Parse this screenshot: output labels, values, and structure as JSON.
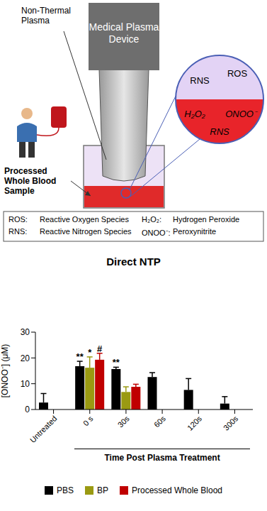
{
  "diagram": {
    "device": "Medical Plasma Device",
    "plasma_label": "Non-Thermal Plasma",
    "sample_label": "Processed Whole Blood Sample",
    "zoom": {
      "gas": [
        "RNS",
        "ROS"
      ],
      "liquid": [
        "H₂O₂",
        "ONOO⁻",
        "RNS"
      ]
    },
    "key": [
      {
        "term": "ROS:",
        "meaning": "Reactive Oxygen Species"
      },
      {
        "term": "H₂O₂:",
        "meaning": "Hydrogen Peroxide"
      },
      {
        "term": "RNS:",
        "meaning": "Reactive Nitrogen Species"
      },
      {
        "term": "ONOO⁻:",
        "meaning": "Peroxynitrite"
      }
    ]
  },
  "chart_data": {
    "type": "bar",
    "title": "Direct NTP",
    "ylabel": "[ONOO⁻] (μM)",
    "xlabel": "Time Post Plasma Treatment",
    "categories": [
      "Untreated",
      "0 s",
      "30s",
      "60s",
      "120s",
      "300s"
    ],
    "series": [
      {
        "name": "PBS",
        "color": "#000000",
        "values": [
          2.7,
          16.8,
          15.7,
          12.6,
          7.6,
          2.3
        ],
        "errors": [
          3.5,
          1.9,
          0.7,
          1.7,
          4.4,
          2.7
        ],
        "annotations": [
          null,
          "**",
          "**",
          null,
          null,
          null
        ]
      },
      {
        "name": "BP",
        "color": "#9a9a12",
        "values": [
          null,
          16.2,
          6.8,
          null,
          null,
          null
        ],
        "errors": [
          null,
          4.2,
          2.0,
          null,
          null,
          null
        ],
        "annotations": [
          null,
          "*",
          null,
          null,
          null,
          null
        ]
      },
      {
        "name": "Processed Whole Blood",
        "color": "#c00000",
        "values": [
          null,
          19.3,
          8.8,
          null,
          null,
          null
        ],
        "errors": [
          null,
          2.5,
          1.0,
          null,
          null,
          null
        ],
        "annotations": [
          null,
          "#",
          null,
          null,
          null,
          null
        ]
      }
    ],
    "ylim": [
      0,
      30
    ],
    "yticks": [
      0,
      10,
      20,
      30
    ],
    "legend": "bottom",
    "grid": false
  }
}
